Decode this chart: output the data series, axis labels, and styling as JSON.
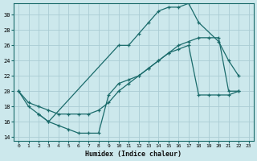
{
  "xlabel": "Humidex (Indice chaleur)",
  "bg_color": "#cce8ec",
  "grid_color": "#aaccd4",
  "line_color": "#1a6b6b",
  "curve1_x": [
    0,
    1,
    2,
    3,
    10,
    11,
    12,
    13,
    14,
    15,
    16,
    17,
    18,
    20,
    21,
    22
  ],
  "curve1_y": [
    20,
    18,
    17,
    16,
    26,
    26,
    27.5,
    29,
    30.5,
    31,
    31,
    31.5,
    29,
    26.5,
    24,
    22
  ],
  "curve2_x": [
    0,
    1,
    2,
    3,
    4,
    5,
    6,
    7,
    8,
    9,
    10,
    11,
    12,
    13,
    14,
    15,
    16,
    17,
    18,
    19,
    20,
    21,
    22
  ],
  "curve2_y": [
    20,
    18.5,
    18,
    17.5,
    17,
    17,
    17,
    17,
    17.5,
    18.5,
    20,
    21,
    22,
    23,
    24,
    25,
    26,
    26.5,
    27,
    27,
    27,
    20,
    20
  ],
  "curve3_x": [
    2,
    3,
    4,
    5,
    6,
    7,
    8,
    9,
    10,
    11,
    12,
    13,
    14,
    15,
    16,
    17,
    18,
    19,
    20,
    21,
    22
  ],
  "curve3_y": [
    17,
    16,
    15.5,
    15,
    14.5,
    14.5,
    14.5,
    19.5,
    21,
    21.5,
    22,
    23,
    24,
    25,
    25.5,
    26,
    19.5,
    19.5,
    19.5,
    19.5,
    20
  ],
  "xlim": [
    -0.5,
    23.5
  ],
  "ylim": [
    13.5,
    31.5
  ],
  "xticks": [
    0,
    1,
    2,
    3,
    4,
    5,
    6,
    7,
    8,
    9,
    10,
    11,
    12,
    13,
    14,
    15,
    16,
    17,
    18,
    19,
    20,
    21,
    22,
    23
  ],
  "yticks": [
    14,
    16,
    18,
    20,
    22,
    24,
    26,
    28,
    30
  ]
}
